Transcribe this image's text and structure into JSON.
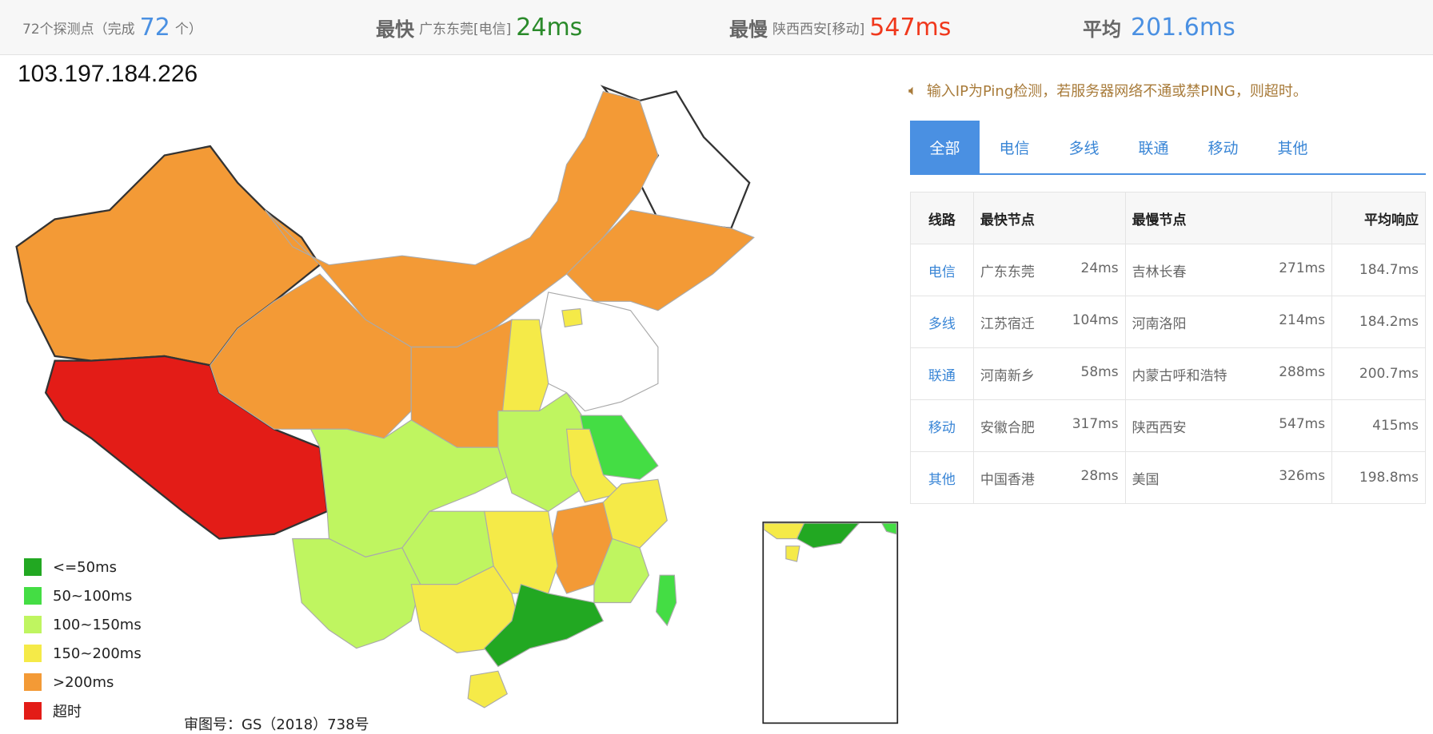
{
  "summary": {
    "probes_label": "72个探测点（完成",
    "probes_done": "72",
    "probes_suffix": "个）",
    "fastest_label": "最快",
    "fastest_node": "广东东莞[电信]",
    "fastest_value": "24ms",
    "slowest_label": "最慢",
    "slowest_node": "陕西西安[移动]",
    "slowest_value": "547ms",
    "avg_label": "平均",
    "avg_value": "201.6ms"
  },
  "ip": "103.197.184.226",
  "notice": {
    "icon": "speaker-icon",
    "text": "输入IP为Ping检测，若服务器网络不通或禁PING，则超时。"
  },
  "tabs": [
    {
      "label": "全部",
      "active": true
    },
    {
      "label": "电信"
    },
    {
      "label": "多线"
    },
    {
      "label": "联通"
    },
    {
      "label": "移动"
    },
    {
      "label": "其他"
    }
  ],
  "table": {
    "headers": [
      "线路",
      "最快节点",
      "最慢节点",
      "平均响应"
    ],
    "rows": [
      {
        "line": "电信",
        "fast_node": "广东东莞",
        "fast_ms": "24ms",
        "slow_node": "吉林长春",
        "slow_ms": "271ms",
        "avg": "184.7ms"
      },
      {
        "line": "多线",
        "fast_node": "江苏宿迁",
        "fast_ms": "104ms",
        "slow_node": "河南洛阳",
        "slow_ms": "214ms",
        "avg": "184.2ms"
      },
      {
        "line": "联通",
        "fast_node": "河南新乡",
        "fast_ms": "58ms",
        "slow_node": "内蒙古呼和浩特",
        "slow_ms": "288ms",
        "avg": "200.7ms"
      },
      {
        "line": "移动",
        "fast_node": "安徽合肥",
        "fast_ms": "317ms",
        "slow_node": "陕西西安",
        "slow_ms": "547ms",
        "avg": "415ms"
      },
      {
        "line": "其他",
        "fast_node": "中国香港",
        "fast_ms": "28ms",
        "slow_node": "美国",
        "slow_ms": "326ms",
        "avg": "198.8ms"
      }
    ]
  },
  "legend": [
    {
      "label": "<=50ms",
      "color": "#22a822"
    },
    {
      "label": "50~100ms",
      "color": "#44dd44"
    },
    {
      "label": "100~150ms",
      "color": "#bff560"
    },
    {
      "label": "150~200ms",
      "color": "#f5ea48"
    },
    {
      "label": ">200ms",
      "color": "#f39a36"
    },
    {
      "label": "超时",
      "color": "#e31c17"
    }
  ],
  "map_caption": "审图号：GS（2018）738号",
  "colors": {
    "fast": "#2a8a2a",
    "slow": "#f0381c",
    "avg": "#4a90e2",
    "accent": "#4a90e2"
  }
}
